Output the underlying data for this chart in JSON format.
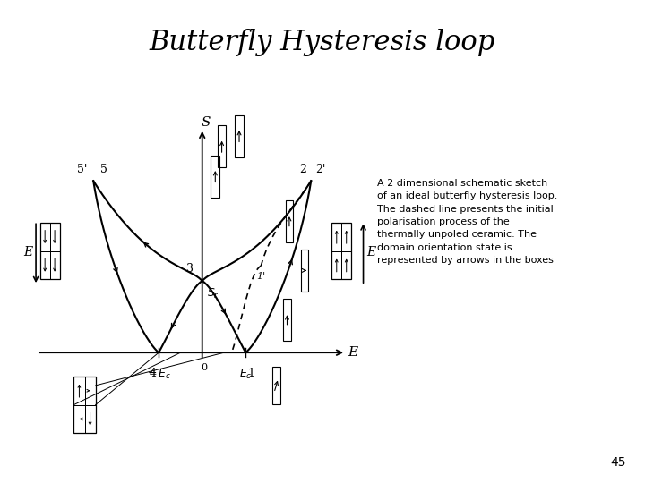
{
  "title": "Butterfly Hysteresis loop",
  "title_fontsize": 22,
  "description_text": "A 2 dimensional schematic sketch\nof an ideal butterfly hysteresis loop.\nThe dashed line presents the initial\npolarisation process of the\nthermally unpoled ceramic. The\ndomain orientation state is\nrepresented by arrows in the boxes",
  "page_number": "45",
  "bg": "#ffffff"
}
